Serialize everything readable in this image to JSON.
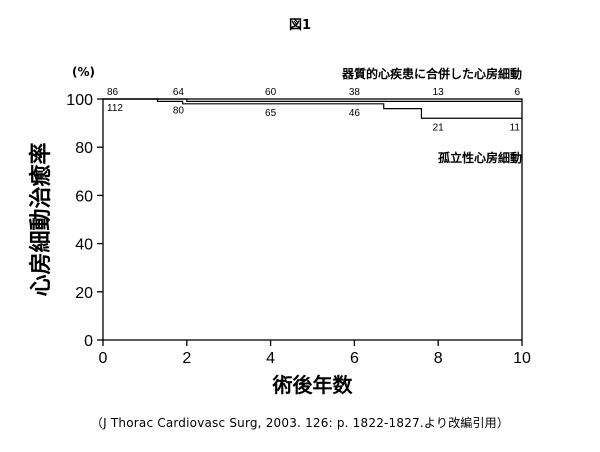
{
  "figure_title": "図1",
  "source_note": "（J Thorac Cardiovasc Surg, 2003. 126: p. 1822-1827.より改編引用）",
  "chart_data": {
    "type": "line",
    "title": "",
    "xlabel": "術後年数",
    "ylabel": "心房細動治癒率",
    "y_unit": "(%)",
    "xlim": [
      0,
      10
    ],
    "ylim": [
      0,
      100
    ],
    "xticks": [
      0,
      2,
      4,
      6,
      8,
      10
    ],
    "yticks": [
      0,
      20,
      40,
      60,
      80,
      100
    ],
    "grid": false,
    "series": [
      {
        "name": "器質的心疾患に合併した心房細動",
        "step": true,
        "x": [
          0,
          1.8,
          2.0,
          10
        ],
        "y": [
          100,
          100,
          99,
          99
        ],
        "at_risk": [
          {
            "x": 0,
            "value": "86"
          },
          {
            "x": 1.8,
            "value": "64"
          },
          {
            "x": 4,
            "value": "60"
          },
          {
            "x": 6,
            "value": "38"
          },
          {
            "x": 8,
            "value": "13"
          },
          {
            "x": 10,
            "value": "6"
          }
        ]
      },
      {
        "name": "孤立性心房細動",
        "step": true,
        "x": [
          0,
          1.3,
          1.9,
          6.7,
          7.6,
          10
        ],
        "y": [
          100,
          99,
          98,
          96,
          92,
          92
        ],
        "at_risk": [
          {
            "x": 0,
            "value": "112"
          },
          {
            "x": 1.8,
            "value": "80"
          },
          {
            "x": 4,
            "value": "65"
          },
          {
            "x": 6,
            "value": "46"
          },
          {
            "x": 8,
            "value": "21"
          },
          {
            "x": 10,
            "value": "11"
          }
        ]
      }
    ]
  }
}
